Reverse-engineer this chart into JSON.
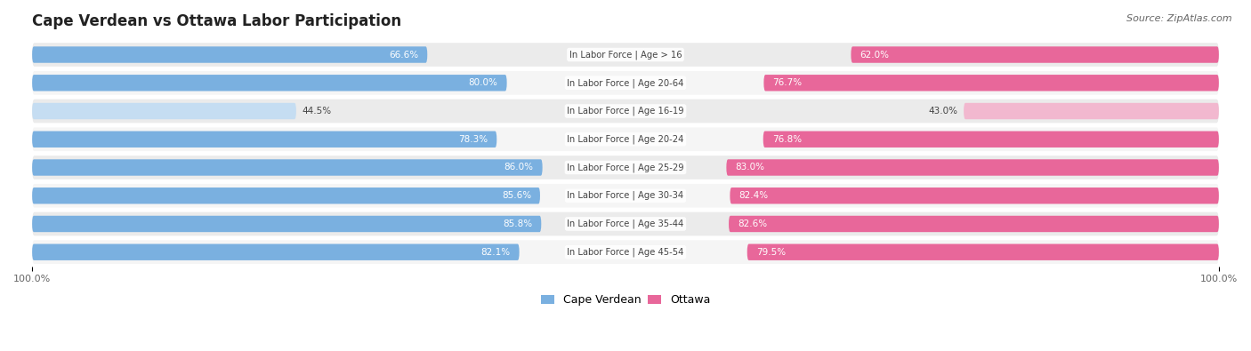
{
  "title": "Cape Verdean vs Ottawa Labor Participation",
  "source": "Source: ZipAtlas.com",
  "categories": [
    "In Labor Force | Age > 16",
    "In Labor Force | Age 20-64",
    "In Labor Force | Age 16-19",
    "In Labor Force | Age 20-24",
    "In Labor Force | Age 25-29",
    "In Labor Force | Age 30-34",
    "In Labor Force | Age 35-44",
    "In Labor Force | Age 45-54"
  ],
  "cape_verdean": [
    66.6,
    80.0,
    44.5,
    78.3,
    86.0,
    85.6,
    85.8,
    82.1
  ],
  "ottawa": [
    62.0,
    76.7,
    43.0,
    76.8,
    83.0,
    82.4,
    82.6,
    79.5
  ],
  "cape_verdean_color_strong": "#7ab0e0",
  "cape_verdean_color_light": "#c5ddf2",
  "ottawa_color_strong": "#e8679a",
  "ottawa_color_light": "#f2b8cf",
  "bg_row_color": "#ebebeb",
  "bg_row_alt_color": "#f5f5f5",
  "label_color_dark": "#444444",
  "label_color_white": "#ffffff",
  "max_val": 100.0,
  "bar_height": 0.58,
  "legend_cape_verdean": "Cape Verdean",
  "legend_ottawa": "Ottawa"
}
